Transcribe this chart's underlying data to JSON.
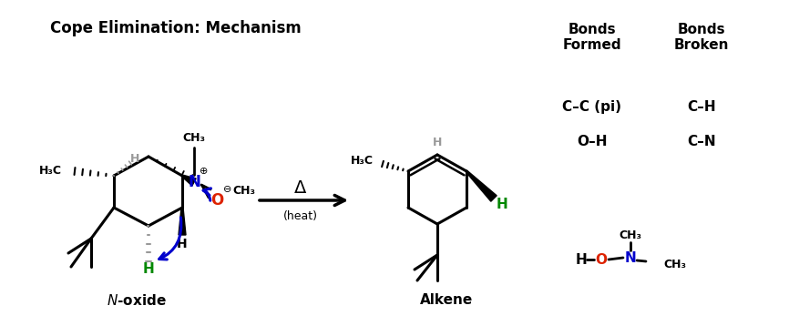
{
  "title": "Cope Elimination: Mechanism",
  "background": "#ffffff",
  "figsize": [
    8.78,
    3.58
  ],
  "dpi": 100,
  "bonds_formed_header": "Bonds\nFormed",
  "bonds_broken_header": "Bonds\nBroken",
  "bonds_formed": [
    "C–C (pi)",
    "O–H"
  ],
  "bonds_broken": [
    "C–H",
    "C–N"
  ],
  "label_noxide": "$\\it{N}$-oxide",
  "label_alkene": "Alkene",
  "delta_label": "Δ",
  "heat_label": "(heat)",
  "colors": {
    "black": "#000000",
    "blue": "#0000cc",
    "red": "#dd2200",
    "green": "#008800",
    "gray": "#999999"
  }
}
